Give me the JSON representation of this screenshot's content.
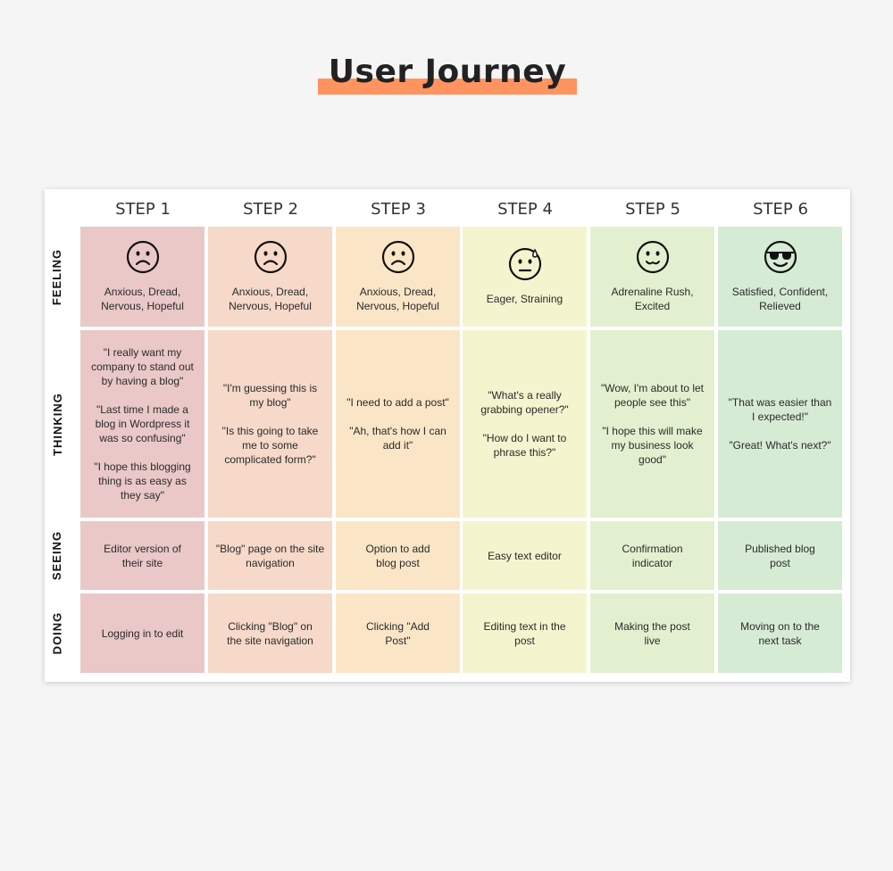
{
  "title": "User Journey",
  "colors": {
    "title_bar": "#ff9460",
    "step1": "#eac8c8",
    "step2": "#f6d9c9",
    "step3": "#fae6c7",
    "step4": "#f4f5cf",
    "step5": "#e3f0cf",
    "step6": "#d6ebd4"
  },
  "steps": [
    "STEP 1",
    "STEP 2",
    "STEP 3",
    "STEP 4",
    "STEP 5",
    "STEP 6"
  ],
  "rows": {
    "feeling": "FEELING",
    "thinking": "THINKING",
    "seeing": "SEEING",
    "doing": "DOING"
  },
  "feeling": [
    {
      "icon": "sad-face-icon",
      "lines": [
        "Anxious, Dread,",
        "Nervous, Hopeful"
      ]
    },
    {
      "icon": "sad-face-icon",
      "lines": [
        "Anxious, Dread,",
        "Nervous, Hopeful"
      ]
    },
    {
      "icon": "sad-face-icon",
      "lines": [
        "Anxious, Dread,",
        "Nervous, Hopeful"
      ]
    },
    {
      "icon": "sweating-face-icon",
      "lines": [
        "Eager, Straining"
      ]
    },
    {
      "icon": "relieved-face-icon",
      "lines": [
        "Adrenaline Rush,",
        "Excited"
      ]
    },
    {
      "icon": "sunglasses-face-icon",
      "lines": [
        "Satisfied, Confident,",
        "Relieved"
      ]
    }
  ],
  "thinking": [
    [
      [
        "\"I really want my",
        "company to stand out",
        "by having a blog\""
      ],
      [
        "\"Last time I made a",
        "blog in Wordpress it",
        "was so confusing\""
      ],
      [
        "\"I hope this blogging",
        "thing is as easy as",
        "they say\""
      ]
    ],
    [
      [
        "\"I'm guessing this is",
        "my blog\""
      ],
      [
        "\"Is this going to take",
        "me to some",
        "complicated form?\""
      ]
    ],
    [
      [
        "\"I need to add a post\""
      ],
      [
        "\"Ah, that's how I can",
        "add it\""
      ]
    ],
    [
      [
        "\"What's a really",
        "grabbing opener?\""
      ],
      [
        "\"How do I want to",
        "phrase this?\""
      ]
    ],
    [
      [
        "\"Wow, I'm about to let",
        "people see this\""
      ],
      [
        "\"I hope this will make",
        "my business look",
        "good\""
      ]
    ],
    [
      [
        "\"That was easier than",
        "I expected!\""
      ],
      [
        "\"Great! What's next?\""
      ]
    ]
  ],
  "seeing": [
    [
      "Editor version of",
      "their site"
    ],
    [
      "\"Blog\" page on the site",
      "navigation"
    ],
    [
      "Option to add",
      "blog post"
    ],
    [
      "Easy text editor"
    ],
    [
      "Confirmation",
      "indicator"
    ],
    [
      "Published blog",
      "post"
    ]
  ],
  "doing": [
    [
      "Logging in to edit"
    ],
    [
      "Clicking \"Blog\" on",
      "the site navigation"
    ],
    [
      "Clicking \"Add",
      "Post\""
    ],
    [
      "Editing text in the",
      "post"
    ],
    [
      "Making the post",
      "live"
    ],
    [
      "Moving on to the",
      "next task"
    ]
  ]
}
